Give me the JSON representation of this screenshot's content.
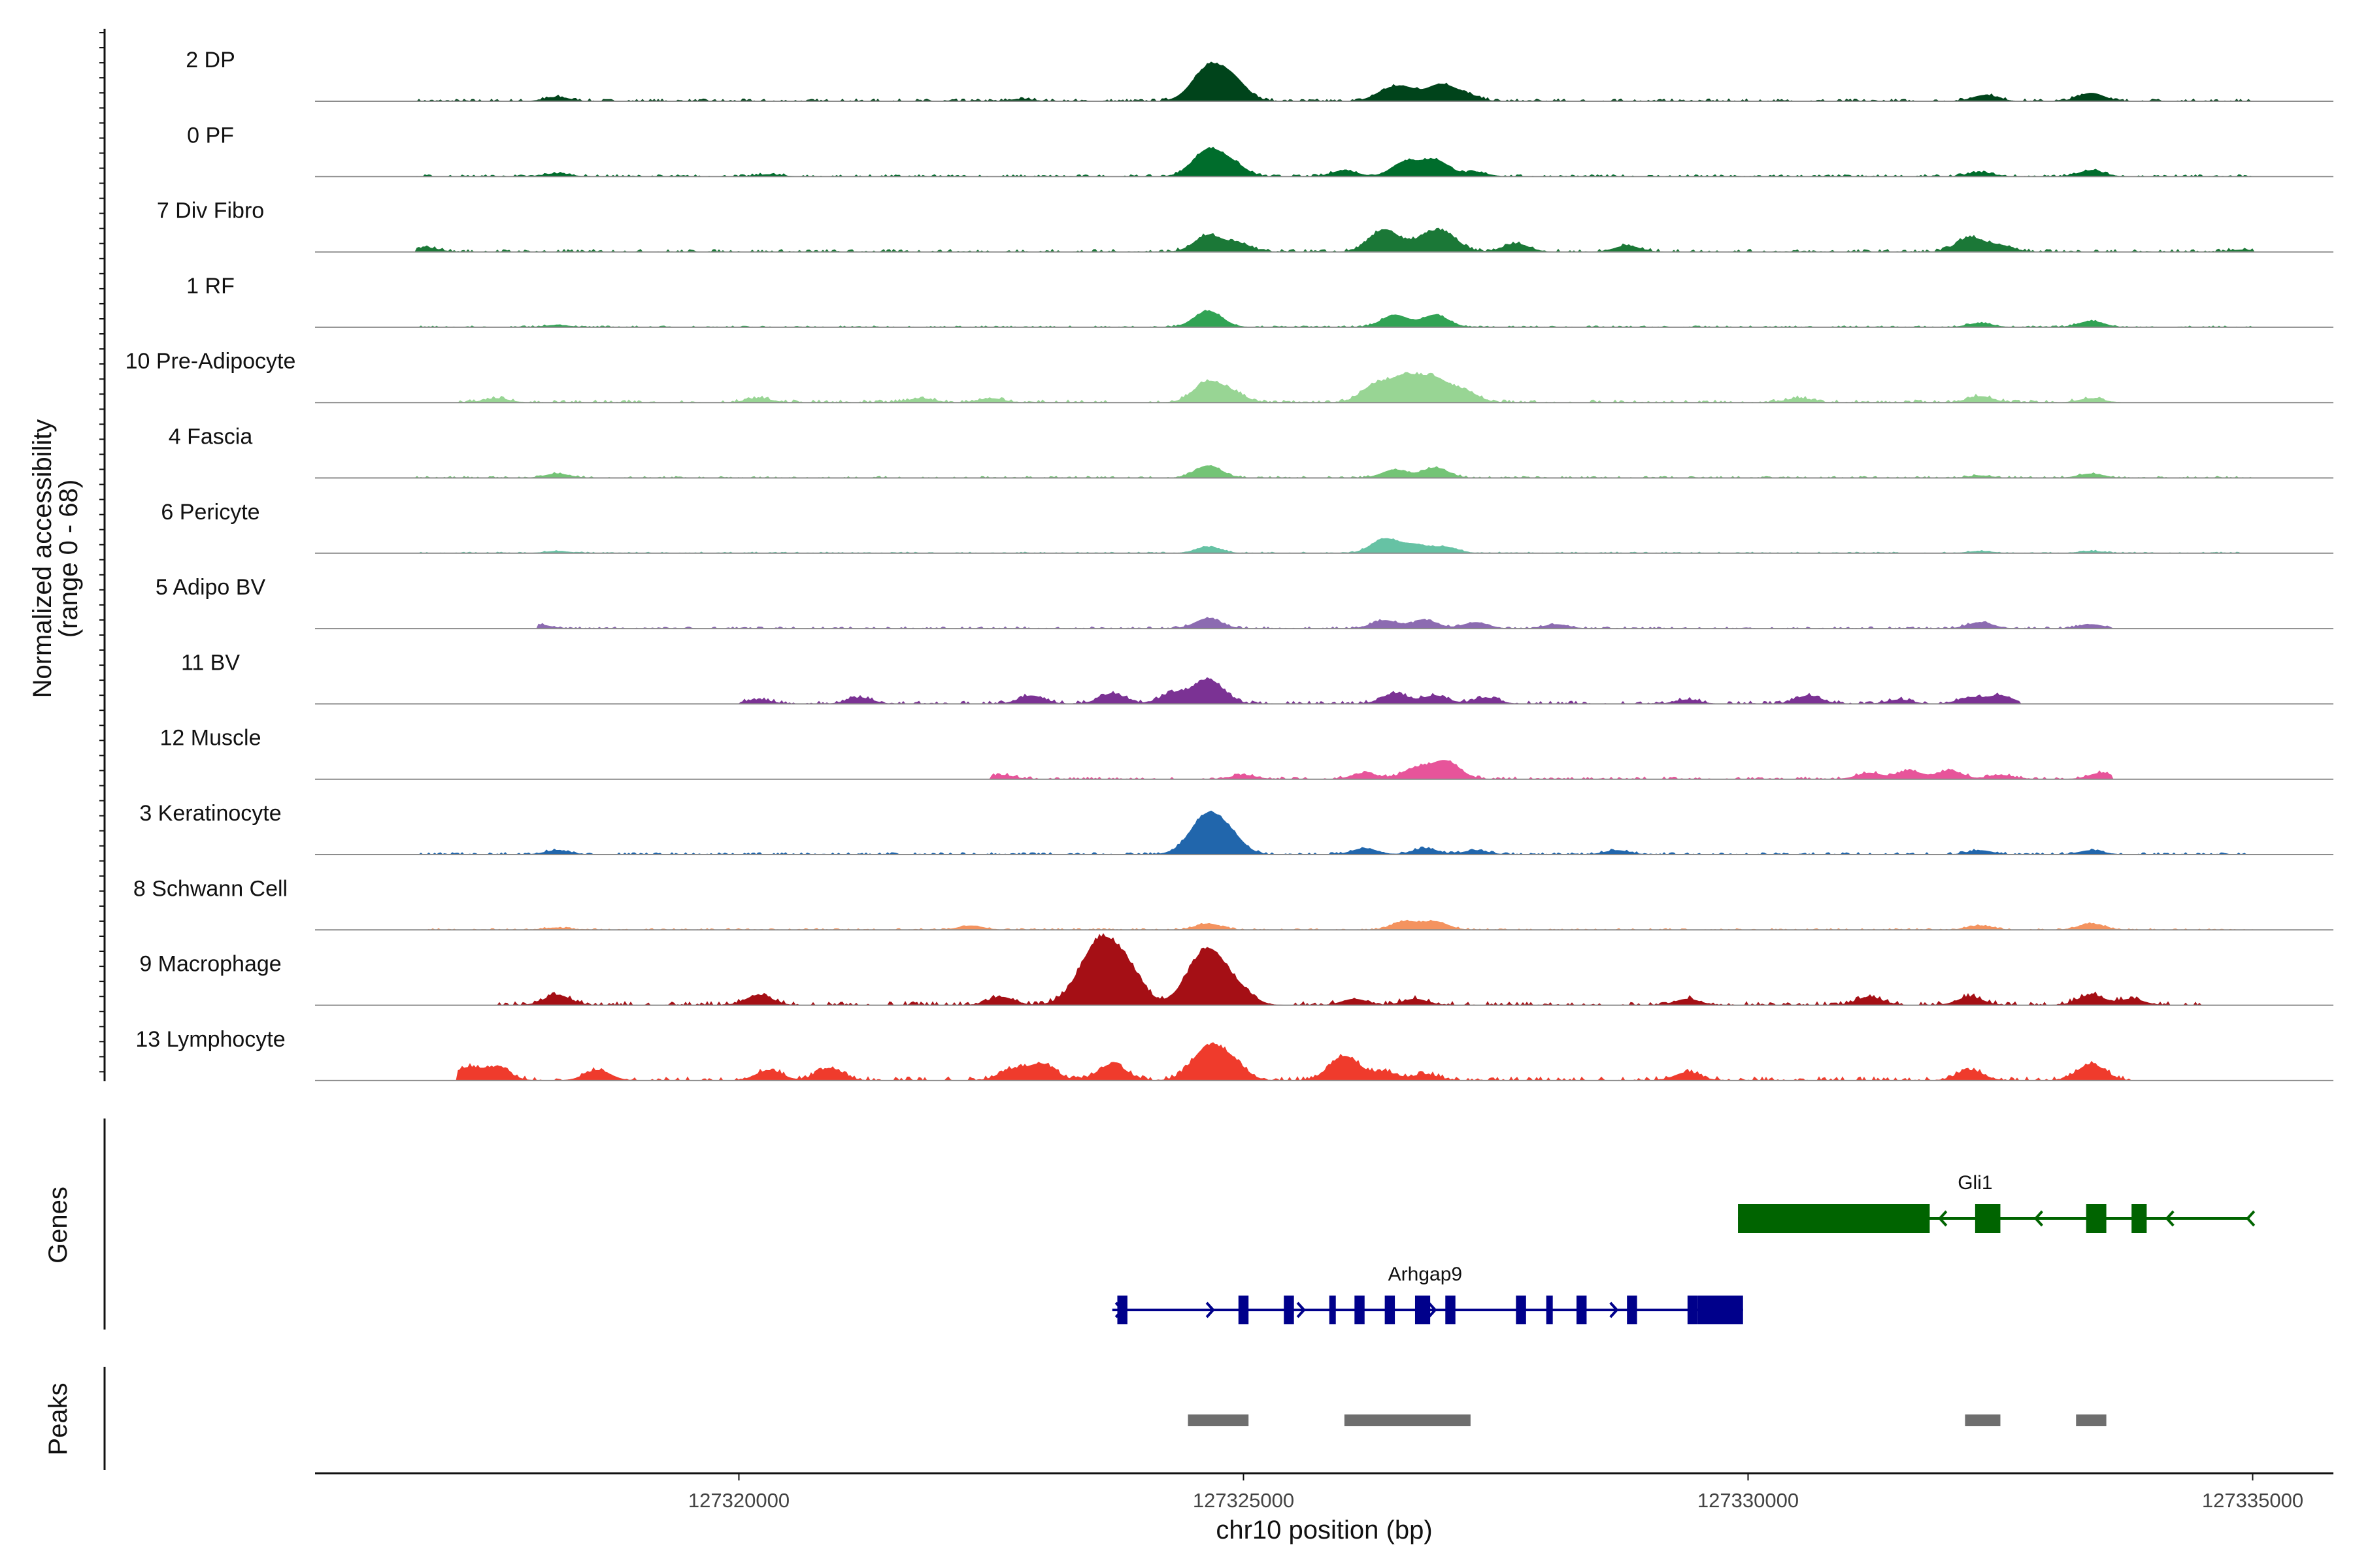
{
  "chart_data": {
    "type": "area",
    "chromosome": "chr10",
    "xlabel": "chr10 position (bp)",
    "ylabel": "Normalized accessibility\n(range 0 - 68)",
    "xlim": [
      127315800,
      127335800
    ],
    "ylim": [
      0,
      68
    ],
    "x_ticks": [
      127320000,
      127325000,
      127330000,
      127335000
    ],
    "x_tick_labels": [
      "127320000",
      "127325000",
      "127330000",
      "127335000"
    ],
    "panel_labels": [
      "Genes",
      "Peaks"
    ],
    "grid": false,
    "tracks": [
      {
        "name": "2 DP",
        "color": "#00441b",
        "peaks": [
          {
            "x": 127318200,
            "h": 2
          },
          {
            "x": 127322800,
            "h": 1
          },
          {
            "x": 127324650,
            "h": 16
          },
          {
            "x": 127324900,
            "h": 9
          },
          {
            "x": 127326400,
            "h": 4
          },
          {
            "x": 127326600,
            "h": 6
          },
          {
            "x": 127326950,
            "h": 8
          },
          {
            "x": 127327200,
            "h": 3
          },
          {
            "x": 127332350,
            "h": 3
          },
          {
            "x": 127333400,
            "h": 4
          }
        ],
        "noise": 1.2,
        "start": 127316800,
        "end": 127335000
      },
      {
        "name": "0 PF",
        "color": "#006d2c",
        "peaks": [
          {
            "x": 127318200,
            "h": 1.5
          },
          {
            "x": 127320300,
            "h": 1
          },
          {
            "x": 127324650,
            "h": 13
          },
          {
            "x": 127324900,
            "h": 5
          },
          {
            "x": 127326000,
            "h": 3
          },
          {
            "x": 127326600,
            "h": 7
          },
          {
            "x": 127326900,
            "h": 8
          },
          {
            "x": 127327300,
            "h": 2
          },
          {
            "x": 127332300,
            "h": 2
          },
          {
            "x": 127333400,
            "h": 3
          }
        ],
        "noise": 1.0,
        "start": 127316800,
        "end": 127335000
      },
      {
        "name": "7 Div Fibro",
        "color": "#1b7837",
        "peaks": [
          {
            "x": 127316900,
            "h": 2
          },
          {
            "x": 127324650,
            "h": 8
          },
          {
            "x": 127324950,
            "h": 4
          },
          {
            "x": 127326400,
            "h": 11
          },
          {
            "x": 127326800,
            "h": 6
          },
          {
            "x": 127327000,
            "h": 8
          },
          {
            "x": 127327700,
            "h": 4
          },
          {
            "x": 127328800,
            "h": 3
          },
          {
            "x": 127332200,
            "h": 7
          },
          {
            "x": 127332500,
            "h": 3
          },
          {
            "x": 127334900,
            "h": 1
          }
        ],
        "noise": 1.3,
        "start": 127316800,
        "end": 127335000
      },
      {
        "name": "1 RF",
        "color": "#31a354",
        "peaks": [
          {
            "x": 127318200,
            "h": 1
          },
          {
            "x": 127324650,
            "h": 8
          },
          {
            "x": 127326500,
            "h": 6
          },
          {
            "x": 127326900,
            "h": 6
          },
          {
            "x": 127332300,
            "h": 2
          },
          {
            "x": 127333400,
            "h": 3
          }
        ],
        "noise": 0.7,
        "start": 127316800,
        "end": 127335000
      },
      {
        "name": "10 Pre-Adipocyte",
        "color": "#98d594",
        "peaks": [
          {
            "x": 127317600,
            "h": 2
          },
          {
            "x": 127320200,
            "h": 2
          },
          {
            "x": 127321800,
            "h": 2
          },
          {
            "x": 127322500,
            "h": 2
          },
          {
            "x": 127324650,
            "h": 10
          },
          {
            "x": 127324900,
            "h": 4
          },
          {
            "x": 127326300,
            "h": 8
          },
          {
            "x": 127326600,
            "h": 12
          },
          {
            "x": 127326900,
            "h": 11
          },
          {
            "x": 127327200,
            "h": 5
          },
          {
            "x": 127330500,
            "h": 2
          },
          {
            "x": 127332300,
            "h": 3
          },
          {
            "x": 127333400,
            "h": 2
          }
        ],
        "noise": 1.3,
        "start": 127317200,
        "end": 127333700
      },
      {
        "name": "4 Fascia",
        "color": "#74c476",
        "peaks": [
          {
            "x": 127318200,
            "h": 2
          },
          {
            "x": 127324650,
            "h": 6
          },
          {
            "x": 127326500,
            "h": 4
          },
          {
            "x": 127326900,
            "h": 5
          },
          {
            "x": 127332300,
            "h": 1
          },
          {
            "x": 127333400,
            "h": 2
          }
        ],
        "noise": 0.8,
        "start": 127316800,
        "end": 127335000
      },
      {
        "name": "6 Pericyte",
        "color": "#66c2a4",
        "peaks": [
          {
            "x": 127318200,
            "h": 1
          },
          {
            "x": 127324650,
            "h": 3
          },
          {
            "x": 127326400,
            "h": 7
          },
          {
            "x": 127326700,
            "h": 4
          },
          {
            "x": 127327000,
            "h": 3
          },
          {
            "x": 127332300,
            "h": 1
          },
          {
            "x": 127333400,
            "h": 1
          }
        ],
        "noise": 0.6,
        "start": 127316800,
        "end": 127335000
      },
      {
        "name": "5 Adipo BV",
        "color": "#8c6bb1",
        "peaks": [
          {
            "x": 127318000,
            "h": 2
          },
          {
            "x": 127324650,
            "h": 5
          },
          {
            "x": 127326400,
            "h": 4
          },
          {
            "x": 127326800,
            "h": 4
          },
          {
            "x": 127327300,
            "h": 3
          },
          {
            "x": 127328100,
            "h": 2
          },
          {
            "x": 127332300,
            "h": 3
          },
          {
            "x": 127333400,
            "h": 2
          }
        ],
        "noise": 0.9,
        "start": 127318000,
        "end": 127333600
      },
      {
        "name": "11 BV",
        "color": "#7b3294",
        "peaks": [
          {
            "x": 127320200,
            "h": 2
          },
          {
            "x": 127321200,
            "h": 3
          },
          {
            "x": 127322900,
            "h": 4
          },
          {
            "x": 127323700,
            "h": 5
          },
          {
            "x": 127324300,
            "h": 5
          },
          {
            "x": 127324650,
            "h": 12
          },
          {
            "x": 127326500,
            "h": 5
          },
          {
            "x": 127326900,
            "h": 4
          },
          {
            "x": 127327400,
            "h": 3
          },
          {
            "x": 127329400,
            "h": 2
          },
          {
            "x": 127330600,
            "h": 4
          },
          {
            "x": 127331500,
            "h": 2
          },
          {
            "x": 127332200,
            "h": 3
          },
          {
            "x": 127332500,
            "h": 4
          }
        ],
        "noise": 1.4,
        "start": 127320000,
        "end": 127332700
      },
      {
        "name": "12 Muscle",
        "color": "#e7549a",
        "peaks": [
          {
            "x": 127322600,
            "h": 2
          },
          {
            "x": 127325000,
            "h": 2
          },
          {
            "x": 127326200,
            "h": 3
          },
          {
            "x": 127326700,
            "h": 5
          },
          {
            "x": 127327000,
            "h": 9
          },
          {
            "x": 127331200,
            "h": 3
          },
          {
            "x": 127331600,
            "h": 4
          },
          {
            "x": 127332000,
            "h": 4
          },
          {
            "x": 127332500,
            "h": 2
          },
          {
            "x": 127333500,
            "h": 3
          }
        ],
        "noise": 1.2,
        "start": 127322500,
        "end": 127333600
      },
      {
        "name": "3 Keratinocyte",
        "color": "#2166ac",
        "peaks": [
          {
            "x": 127318200,
            "h": 2
          },
          {
            "x": 127324650,
            "h": 20
          },
          {
            "x": 127324900,
            "h": 5
          },
          {
            "x": 127326200,
            "h": 3
          },
          {
            "x": 127326800,
            "h": 3
          },
          {
            "x": 127327300,
            "h": 2
          },
          {
            "x": 127328700,
            "h": 2
          },
          {
            "x": 127332300,
            "h": 2
          },
          {
            "x": 127333400,
            "h": 2
          }
        ],
        "noise": 1.0,
        "start": 127316800,
        "end": 127335000
      },
      {
        "name": "8 Schwann Cell",
        "color": "#f4935f",
        "peaks": [
          {
            "x": 127318200,
            "h": 1
          },
          {
            "x": 127322300,
            "h": 2
          },
          {
            "x": 127324650,
            "h": 3
          },
          {
            "x": 127326600,
            "h": 4
          },
          {
            "x": 127326900,
            "h": 4
          },
          {
            "x": 127332300,
            "h": 2
          },
          {
            "x": 127333400,
            "h": 3
          }
        ],
        "noise": 0.7,
        "start": 127316800,
        "end": 127335000
      },
      {
        "name": "9 Macrophage",
        "color": "#a50f15",
        "peaks": [
          {
            "x": 127318200,
            "h": 5
          },
          {
            "x": 127320200,
            "h": 5
          },
          {
            "x": 127322600,
            "h": 4
          },
          {
            "x": 127323600,
            "h": 33
          },
          {
            "x": 127323900,
            "h": 8
          },
          {
            "x": 127324650,
            "h": 28
          },
          {
            "x": 127325000,
            "h": 4
          },
          {
            "x": 127326100,
            "h": 3
          },
          {
            "x": 127326700,
            "h": 3
          },
          {
            "x": 127329400,
            "h": 3
          },
          {
            "x": 127331200,
            "h": 4
          },
          {
            "x": 127332200,
            "h": 4
          },
          {
            "x": 127333400,
            "h": 5
          },
          {
            "x": 127333800,
            "h": 3
          }
        ],
        "noise": 1.8,
        "start": 127317500,
        "end": 127334500
      },
      {
        "name": "13 Lymphocyte",
        "color": "#ef3b2c",
        "peaks": [
          {
            "x": 127317300,
            "h": 6
          },
          {
            "x": 127317600,
            "h": 6
          },
          {
            "x": 127318600,
            "h": 5
          },
          {
            "x": 127320300,
            "h": 5
          },
          {
            "x": 127320900,
            "h": 6
          },
          {
            "x": 127322700,
            "h": 5
          },
          {
            "x": 127323000,
            "h": 8
          },
          {
            "x": 127323700,
            "h": 8
          },
          {
            "x": 127324650,
            "h": 16
          },
          {
            "x": 127324900,
            "h": 7
          },
          {
            "x": 127326000,
            "h": 12
          },
          {
            "x": 127326400,
            "h": 4
          },
          {
            "x": 127326800,
            "h": 3
          },
          {
            "x": 127329400,
            "h": 4
          },
          {
            "x": 127332200,
            "h": 5
          },
          {
            "x": 127333400,
            "h": 8
          }
        ],
        "noise": 1.8,
        "start": 127317200,
        "end": 127333800
      }
    ],
    "genes": [
      {
        "name": "Gli1",
        "color": "#006400",
        "strand": "-",
        "start": 127329900,
        "end": 127334950,
        "exons": [
          [
            127329900,
            127331800
          ],
          [
            127332250,
            127332500
          ],
          [
            127333350,
            127333550
          ],
          [
            127333800,
            127333950
          ]
        ],
        "arrows": [
          127331900,
          127332850,
          127334150,
          127334950
        ]
      },
      {
        "name": "Arhgap9",
        "color": "#00008b",
        "strand": "+",
        "start": 127323700,
        "end": 127329950,
        "exons": [
          [
            127323750,
            127323850
          ],
          [
            127324950,
            127325050
          ],
          [
            127325400,
            127325500
          ],
          [
            127325850,
            127325900
          ],
          [
            127326100,
            127326200
          ],
          [
            127326400,
            127326500
          ],
          [
            127326700,
            127326850
          ],
          [
            127327000,
            127327100
          ],
          [
            127327700,
            127327800
          ],
          [
            127328000,
            127328050
          ],
          [
            127328300,
            127328400
          ],
          [
            127328800,
            127328900
          ],
          [
            127329400,
            127329500
          ],
          [
            127329500,
            127329950
          ]
        ],
        "arrows": [
          127323800,
          127324700,
          127325600,
          127326900,
          127328700
        ]
      }
    ],
    "peaks_track": [
      [
        127324450,
        127325050
      ],
      [
        127326000,
        127327250
      ],
      [
        127332150,
        127332500
      ],
      [
        127333250,
        127333550
      ]
    ]
  }
}
